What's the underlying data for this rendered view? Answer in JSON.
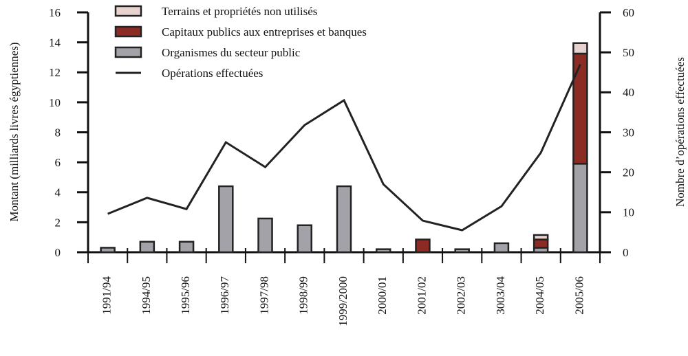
{
  "chart_data": {
    "type": "bar",
    "stacked": true,
    "y_label": "Montant (milliards livres égyptiennes)",
    "y2_label": "Nombre d’opérations effectuées",
    "categories": [
      "1991/94",
      "1994/95",
      "1995/96",
      "1996/97",
      "1997/98",
      "1998/99",
      "1999/2000",
      "2000/01",
      "2001/02",
      "2002/03",
      "3003/04",
      "2004/05",
      "2005/06"
    ],
    "series": [
      {
        "name": "Terrains et propriétés non utilisés",
        "color": "#e8d2cf",
        "values": [
          0,
          0,
          0,
          0,
          0,
          0,
          0,
          0,
          0,
          0,
          0,
          0.3,
          0.7
        ]
      },
      {
        "name": "Capitaux publics aux entreprises et banques",
        "color": "#8b2b24",
        "values": [
          0,
          0,
          0,
          0,
          0,
          0,
          0,
          0,
          0.85,
          0,
          0,
          0.55,
          7.35
        ]
      },
      {
        "name": "Organismes du secteur public",
        "color": "#a2a2a8",
        "values": [
          0.3,
          0.7,
          0.7,
          4.4,
          2.25,
          1.8,
          4.4,
          0.2,
          0,
          0.2,
          0.6,
          0.3,
          5.9
        ]
      },
      {
        "name": "Opérations effectuées",
        "type": "line",
        "axis": "y2",
        "color": "#222222",
        "values": [
          9.6,
          13.6,
          10.8,
          27.5,
          21.3,
          31.8,
          38,
          17,
          7.9,
          5.5,
          11.5,
          24.9,
          47
        ]
      }
    ],
    "ylim": [
      0,
      16
    ],
    "yticks": [
      0,
      2,
      4,
      6,
      8,
      10,
      12,
      14,
      16
    ],
    "y2lim": [
      0,
      60
    ],
    "y2ticks": [
      0,
      10,
      20,
      30,
      40,
      50,
      60
    ],
    "legend": "top-left"
  }
}
